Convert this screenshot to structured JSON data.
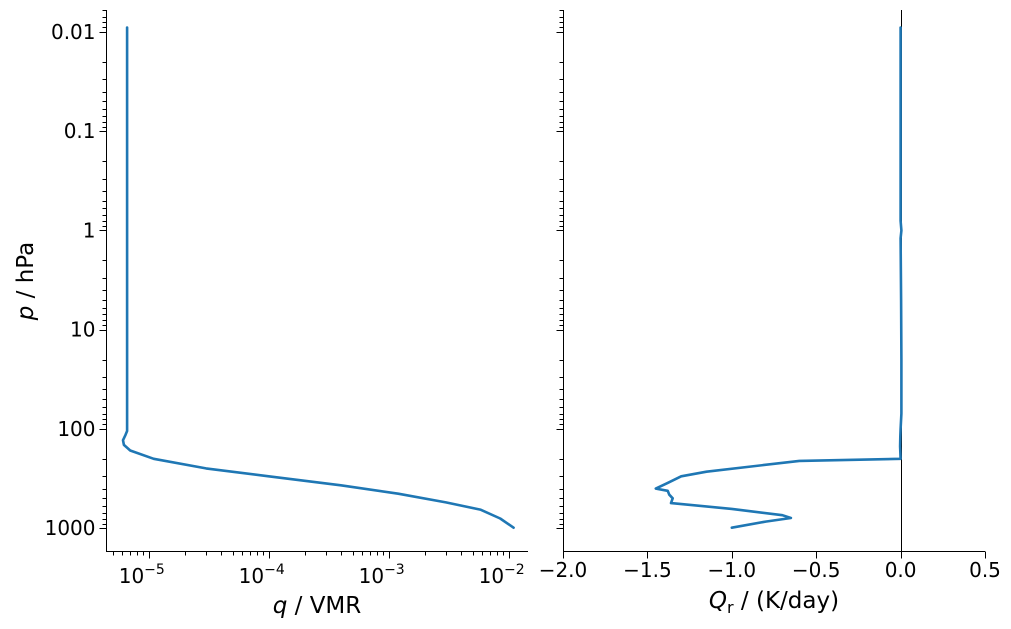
{
  "chart_data": [
    {
      "type": "line",
      "panel": "left",
      "xlabel_var": "q",
      "xlabel_unit": " / VMR",
      "ylabel_var": "p",
      "ylabel_unit": " / hPa",
      "xscale": "log",
      "yscale": "log",
      "y_inverted": true,
      "xlim": [
        4.4e-06,
        0.0145
      ],
      "ylim": [
        1700,
        0.006
      ],
      "x_ticks": [
        {
          "mantissa": "10",
          "exp": "−5",
          "value": 1e-05
        },
        {
          "mantissa": "10",
          "exp": "−4",
          "value": 0.0001
        },
        {
          "mantissa": "10",
          "exp": "−3",
          "value": 0.001
        },
        {
          "mantissa": "10",
          "exp": "−2",
          "value": 0.01
        }
      ],
      "y_ticks": [
        {
          "label": "0.01",
          "value": 0.01
        },
        {
          "label": "0.1",
          "value": 0.1
        },
        {
          "label": "1",
          "value": 1
        },
        {
          "label": "10",
          "value": 10
        },
        {
          "label": "100",
          "value": 100
        },
        {
          "label": "1000",
          "value": 1000
        }
      ],
      "color": "#1f77b4",
      "series": [
        {
          "x": [
            6.6e-06,
            6.6e-06,
            6.6e-06,
            6.6e-06,
            6.6e-06,
            6.6e-06,
            6.6e-06,
            6.4e-06,
            6.1e-06,
            6.2e-06,
            7e-06,
            1.1e-05,
            3e-05,
            0.0001,
            0.0004,
            0.0012,
            0.003,
            0.0058,
            0.0085,
            0.011
          ],
          "y": [
            0.009,
            0.1,
            1,
            10,
            50,
            90,
            105,
            115,
            130,
            145,
            165,
            200,
            250,
            300,
            370,
            450,
            550,
            650,
            800,
            990
          ]
        }
      ]
    },
    {
      "type": "line",
      "panel": "right",
      "xlabel_var": "Q",
      "xlabel_sub": "r",
      "xlabel_unit": " / (K/day)",
      "xscale": "linear",
      "yscale": "log",
      "y_inverted": true,
      "xlim": [
        -2.0,
        0.5
      ],
      "ylim": [
        1700,
        0.006
      ],
      "x_ticks": [
        "−2.0",
        "−1.5",
        "−1.0",
        "−0.5",
        "0.0",
        "0.5"
      ],
      "x_tick_values": [
        -2.0,
        -1.5,
        -1.0,
        -0.5,
        0.0,
        0.5
      ],
      "zero_line": true,
      "color": "#1f77b4",
      "series": [
        {
          "x": [
            0.0,
            0.0,
            0.0,
            0.0,
            0.005,
            0.0,
            0.003,
            0.005,
            0.005,
            0.0,
            -0.002,
            -0.003,
            0.0,
            -0.6,
            -1.15,
            -1.3,
            -1.38,
            -1.45,
            -1.38,
            -1.37,
            -1.35,
            -1.36,
            -1.0,
            -0.7,
            -0.65,
            -0.8,
            -1.0
          ],
          "y": [
            0.009,
            0.1,
            0.3,
            0.8,
            1.0,
            1.2,
            5,
            20,
            70,
            100,
            120,
            150,
            200,
            210,
            270,
            300,
            350,
            400,
            420,
            460,
            500,
            560,
            640,
            740,
            790,
            860,
            990
          ]
        }
      ]
    }
  ]
}
